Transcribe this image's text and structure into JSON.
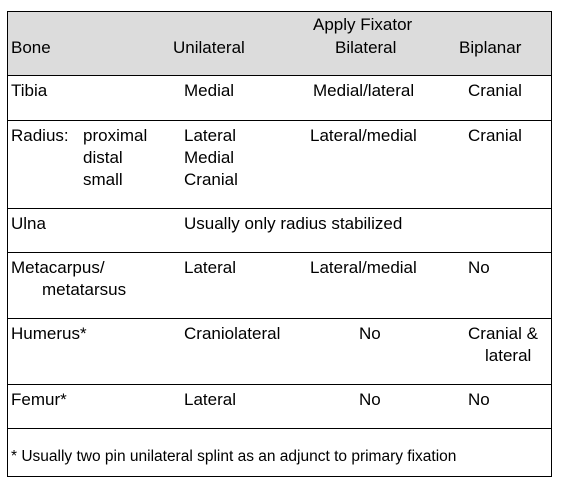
{
  "table": {
    "header": {
      "group_label": "Apply Fixator",
      "columns": [
        "Bone",
        "Unilateral",
        "Bilateral",
        "Biplanar"
      ]
    },
    "rows": [
      {
        "bone": [
          "Tibia"
        ],
        "unilateral": [
          "Medial"
        ],
        "bilateral": [
          "Medial/lateral"
        ],
        "biplanar": [
          "Cranial"
        ]
      },
      {
        "bone": [
          "Radius:",
          "proximal",
          "distal",
          "small"
        ],
        "unilateral": [
          "Lateral",
          "Medial",
          "Cranial"
        ],
        "bilateral": [
          "Lateral/medial"
        ],
        "biplanar": [
          "Cranial"
        ]
      },
      {
        "bone": [
          "Ulna"
        ],
        "note": "Usually only radius stabilized"
      },
      {
        "bone": [
          "Metacarpus/",
          "metatarsus"
        ],
        "unilateral": [
          "Lateral"
        ],
        "bilateral": [
          "Lateral/medial"
        ],
        "biplanar": [
          "No"
        ]
      },
      {
        "bone": [
          "Humerus*"
        ],
        "unilateral": [
          "Craniolateral"
        ],
        "bilateral": [
          "No"
        ],
        "biplanar": [
          "Cranial &",
          "lateral"
        ]
      },
      {
        "bone": [
          "Femur*"
        ],
        "unilateral": [
          "Lateral"
        ],
        "bilateral": [
          "No"
        ],
        "biplanar": [
          "No"
        ]
      }
    ],
    "footnote": "* Usually two pin unilateral splint as an adjunct to primary fixation"
  }
}
